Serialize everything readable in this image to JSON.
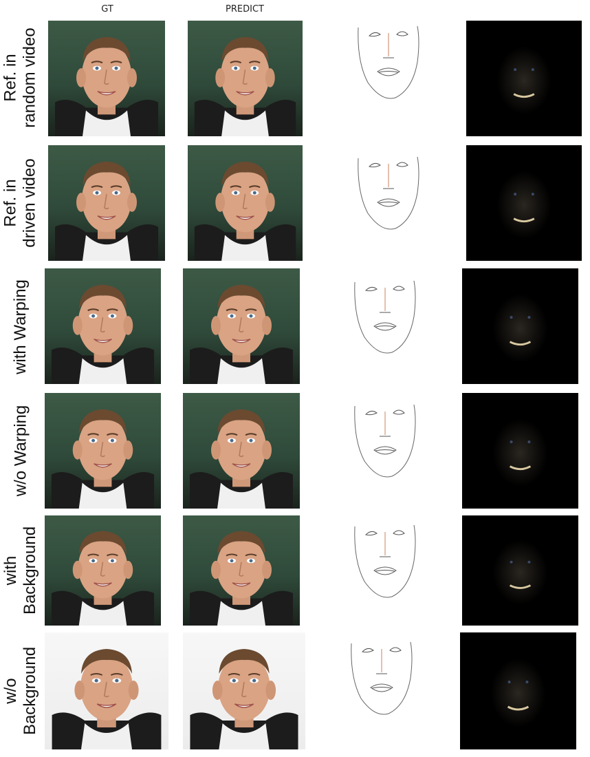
{
  "columns": {
    "gt": "GT",
    "predict": "PREDICT"
  },
  "rows": [
    {
      "id": "ref-random",
      "label_lines": [
        "Ref. in",
        "random video"
      ]
    },
    {
      "id": "ref-driven",
      "label_lines": [
        "Ref. in",
        "driven video"
      ]
    },
    {
      "id": "with-warp",
      "label_lines": [
        "with Warping"
      ]
    },
    {
      "id": "wo-warp",
      "label_lines": [
        "w/o Warping"
      ]
    },
    {
      "id": "with-bg",
      "label_lines": [
        "with",
        "Background"
      ]
    },
    {
      "id": "wo-bg",
      "label_lines": [
        "w/o",
        "Background"
      ]
    }
  ],
  "colors": {
    "background_green": "#3d5a46",
    "skin": "#d9a384",
    "hair": "#6b4a30",
    "shirt": "#f2f2f2",
    "error_map": "#000000"
  }
}
